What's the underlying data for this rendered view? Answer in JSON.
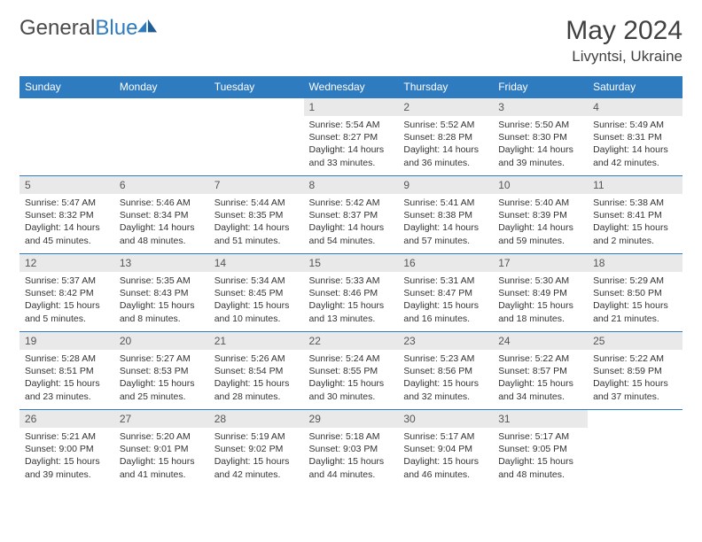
{
  "logo": {
    "text_a": "General",
    "text_b": "Blue"
  },
  "header": {
    "month_title": "May 2024",
    "location": "Livyntsi, Ukraine"
  },
  "colors": {
    "header_bg": "#2f7bbf",
    "header_text": "#ffffff",
    "daynum_bg": "#e9e9e9",
    "border": "#2f7bbf",
    "text": "#333333"
  },
  "weekdays": [
    "Sunday",
    "Monday",
    "Tuesday",
    "Wednesday",
    "Thursday",
    "Friday",
    "Saturday"
  ],
  "weeks": [
    [
      {
        "n": "",
        "lines": [
          "",
          "",
          "",
          ""
        ]
      },
      {
        "n": "",
        "lines": [
          "",
          "",
          "",
          ""
        ]
      },
      {
        "n": "",
        "lines": [
          "",
          "",
          "",
          ""
        ]
      },
      {
        "n": "1",
        "lines": [
          "Sunrise: 5:54 AM",
          "Sunset: 8:27 PM",
          "Daylight: 14 hours",
          "and 33 minutes."
        ]
      },
      {
        "n": "2",
        "lines": [
          "Sunrise: 5:52 AM",
          "Sunset: 8:28 PM",
          "Daylight: 14 hours",
          "and 36 minutes."
        ]
      },
      {
        "n": "3",
        "lines": [
          "Sunrise: 5:50 AM",
          "Sunset: 8:30 PM",
          "Daylight: 14 hours",
          "and 39 minutes."
        ]
      },
      {
        "n": "4",
        "lines": [
          "Sunrise: 5:49 AM",
          "Sunset: 8:31 PM",
          "Daylight: 14 hours",
          "and 42 minutes."
        ]
      }
    ],
    [
      {
        "n": "5",
        "lines": [
          "Sunrise: 5:47 AM",
          "Sunset: 8:32 PM",
          "Daylight: 14 hours",
          "and 45 minutes."
        ]
      },
      {
        "n": "6",
        "lines": [
          "Sunrise: 5:46 AM",
          "Sunset: 8:34 PM",
          "Daylight: 14 hours",
          "and 48 minutes."
        ]
      },
      {
        "n": "7",
        "lines": [
          "Sunrise: 5:44 AM",
          "Sunset: 8:35 PM",
          "Daylight: 14 hours",
          "and 51 minutes."
        ]
      },
      {
        "n": "8",
        "lines": [
          "Sunrise: 5:42 AM",
          "Sunset: 8:37 PM",
          "Daylight: 14 hours",
          "and 54 minutes."
        ]
      },
      {
        "n": "9",
        "lines": [
          "Sunrise: 5:41 AM",
          "Sunset: 8:38 PM",
          "Daylight: 14 hours",
          "and 57 minutes."
        ]
      },
      {
        "n": "10",
        "lines": [
          "Sunrise: 5:40 AM",
          "Sunset: 8:39 PM",
          "Daylight: 14 hours",
          "and 59 minutes."
        ]
      },
      {
        "n": "11",
        "lines": [
          "Sunrise: 5:38 AM",
          "Sunset: 8:41 PM",
          "Daylight: 15 hours",
          "and 2 minutes."
        ]
      }
    ],
    [
      {
        "n": "12",
        "lines": [
          "Sunrise: 5:37 AM",
          "Sunset: 8:42 PM",
          "Daylight: 15 hours",
          "and 5 minutes."
        ]
      },
      {
        "n": "13",
        "lines": [
          "Sunrise: 5:35 AM",
          "Sunset: 8:43 PM",
          "Daylight: 15 hours",
          "and 8 minutes."
        ]
      },
      {
        "n": "14",
        "lines": [
          "Sunrise: 5:34 AM",
          "Sunset: 8:45 PM",
          "Daylight: 15 hours",
          "and 10 minutes."
        ]
      },
      {
        "n": "15",
        "lines": [
          "Sunrise: 5:33 AM",
          "Sunset: 8:46 PM",
          "Daylight: 15 hours",
          "and 13 minutes."
        ]
      },
      {
        "n": "16",
        "lines": [
          "Sunrise: 5:31 AM",
          "Sunset: 8:47 PM",
          "Daylight: 15 hours",
          "and 16 minutes."
        ]
      },
      {
        "n": "17",
        "lines": [
          "Sunrise: 5:30 AM",
          "Sunset: 8:49 PM",
          "Daylight: 15 hours",
          "and 18 minutes."
        ]
      },
      {
        "n": "18",
        "lines": [
          "Sunrise: 5:29 AM",
          "Sunset: 8:50 PM",
          "Daylight: 15 hours",
          "and 21 minutes."
        ]
      }
    ],
    [
      {
        "n": "19",
        "lines": [
          "Sunrise: 5:28 AM",
          "Sunset: 8:51 PM",
          "Daylight: 15 hours",
          "and 23 minutes."
        ]
      },
      {
        "n": "20",
        "lines": [
          "Sunrise: 5:27 AM",
          "Sunset: 8:53 PM",
          "Daylight: 15 hours",
          "and 25 minutes."
        ]
      },
      {
        "n": "21",
        "lines": [
          "Sunrise: 5:26 AM",
          "Sunset: 8:54 PM",
          "Daylight: 15 hours",
          "and 28 minutes."
        ]
      },
      {
        "n": "22",
        "lines": [
          "Sunrise: 5:24 AM",
          "Sunset: 8:55 PM",
          "Daylight: 15 hours",
          "and 30 minutes."
        ]
      },
      {
        "n": "23",
        "lines": [
          "Sunrise: 5:23 AM",
          "Sunset: 8:56 PM",
          "Daylight: 15 hours",
          "and 32 minutes."
        ]
      },
      {
        "n": "24",
        "lines": [
          "Sunrise: 5:22 AM",
          "Sunset: 8:57 PM",
          "Daylight: 15 hours",
          "and 34 minutes."
        ]
      },
      {
        "n": "25",
        "lines": [
          "Sunrise: 5:22 AM",
          "Sunset: 8:59 PM",
          "Daylight: 15 hours",
          "and 37 minutes."
        ]
      }
    ],
    [
      {
        "n": "26",
        "lines": [
          "Sunrise: 5:21 AM",
          "Sunset: 9:00 PM",
          "Daylight: 15 hours",
          "and 39 minutes."
        ]
      },
      {
        "n": "27",
        "lines": [
          "Sunrise: 5:20 AM",
          "Sunset: 9:01 PM",
          "Daylight: 15 hours",
          "and 41 minutes."
        ]
      },
      {
        "n": "28",
        "lines": [
          "Sunrise: 5:19 AM",
          "Sunset: 9:02 PM",
          "Daylight: 15 hours",
          "and 42 minutes."
        ]
      },
      {
        "n": "29",
        "lines": [
          "Sunrise: 5:18 AM",
          "Sunset: 9:03 PM",
          "Daylight: 15 hours",
          "and 44 minutes."
        ]
      },
      {
        "n": "30",
        "lines": [
          "Sunrise: 5:17 AM",
          "Sunset: 9:04 PM",
          "Daylight: 15 hours",
          "and 46 minutes."
        ]
      },
      {
        "n": "31",
        "lines": [
          "Sunrise: 5:17 AM",
          "Sunset: 9:05 PM",
          "Daylight: 15 hours",
          "and 48 minutes."
        ]
      },
      {
        "n": "",
        "lines": [
          "",
          "",
          "",
          ""
        ]
      }
    ]
  ]
}
